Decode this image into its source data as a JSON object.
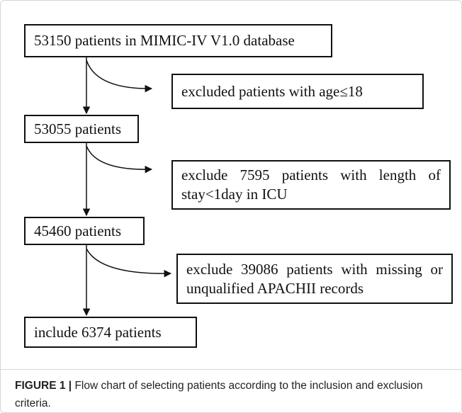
{
  "nodes": [
    {
      "lines": [
        "53150 patients in MIMIC-IV V1.0 database"
      ]
    },
    {
      "lines": [
        "excluded patients with age≤18"
      ]
    },
    {
      "lines": [
        "53055 patients"
      ]
    },
    {
      "lines": [
        "exclude 7595 patients with length of",
        "stay<1day in ICU"
      ]
    },
    {
      "lines": [
        "45460 patients"
      ]
    },
    {
      "lines": [
        "exclude 39086 patients with missing or",
        "unqualified APACHII records"
      ]
    },
    {
      "lines": [
        "include 6374 patients"
      ]
    }
  ],
  "caption": {
    "label": "FIGURE 1 |",
    "text": "Flow chart of selecting patients according to the inclusion and exclusion criteria."
  }
}
